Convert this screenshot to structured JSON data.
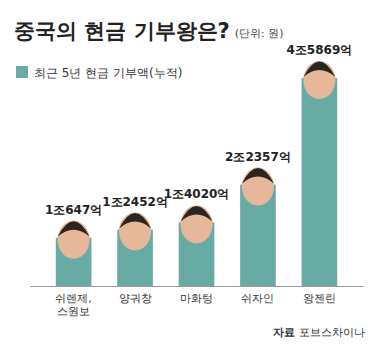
{
  "chart_data": {
    "type": "bar",
    "title": "중국의 현금 기부왕은?",
    "subtitle": "(단위: 원)",
    "source": "자료 포브스차이나",
    "categories": [
      "쉬렌제, 스원보",
      "양궈창",
      "마화텅",
      "쉬자인",
      "왕젠린"
    ],
    "series": [
      {
        "name": "최근 5년 현금 기부액(누적)",
        "color": "#68aba5",
        "values": [
          10647,
          12452,
          14020,
          22357,
          45869
        ],
        "value_labels": [
          "1조647억",
          "1조2452억",
          "1조4020억",
          "2조2357억",
          "4조5869억"
        ]
      }
    ],
    "data_labels": true,
    "tick_labels": "x",
    "legend": "top-left"
  }
}
